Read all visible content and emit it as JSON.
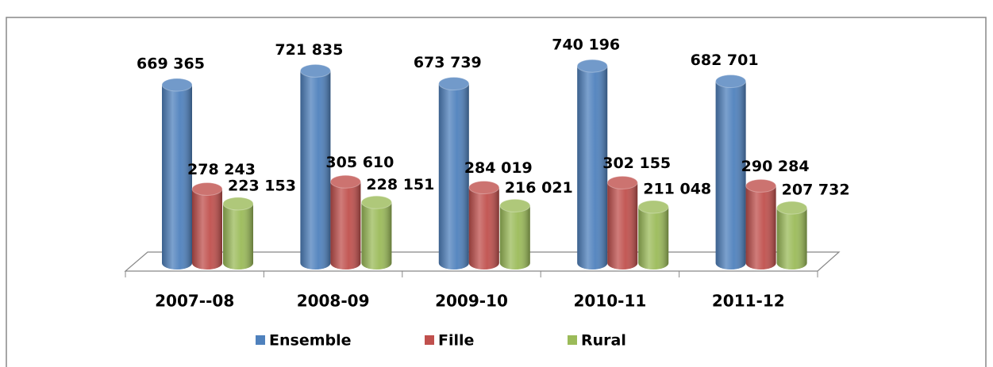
{
  "chart_data": {
    "type": "bar3d",
    "categories": [
      "2007--08",
      "2008-09",
      "2009-10",
      "2010-11",
      "2011-12"
    ],
    "series": [
      {
        "name": "Ensemble",
        "color": "#4f81bd",
        "values": [
          669365,
          721835,
          673739,
          740196,
          682701
        ],
        "value_labels": [
          "669 365",
          "721 835",
          "673 739",
          "740 196",
          "682 701"
        ]
      },
      {
        "name": "Fille",
        "color": "#c0504d",
        "values": [
          278243,
          305610,
          284019,
          302155,
          290284
        ],
        "value_labels": [
          "278 243",
          "305 610",
          "284 019",
          "302 155",
          "290 284"
        ]
      },
      {
        "name": "Rural",
        "color": "#9bbb59",
        "values": [
          223153,
          228151,
          216021,
          211048,
          207732
        ],
        "value_labels": [
          "223 153",
          "228 151",
          "216 021",
          "211 048",
          "207 732"
        ]
      }
    ]
  }
}
